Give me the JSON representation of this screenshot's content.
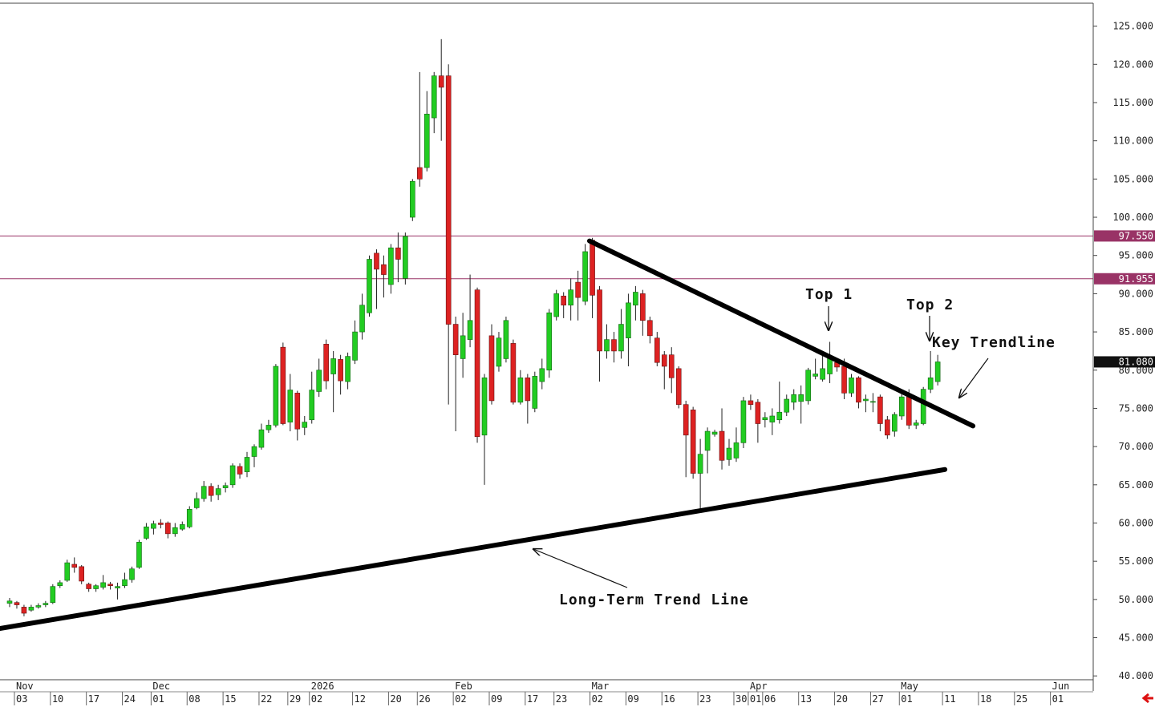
{
  "chart_data": {
    "type": "candlestick",
    "up_color": "#22cc22",
    "down_color": "#dd2222",
    "categories": [
      null,
      "03",
      null,
      null,
      null,
      null,
      "10",
      null,
      null,
      null,
      null,
      "17",
      null,
      null,
      null,
      null,
      "24",
      null,
      null,
      null,
      "01",
      null,
      null,
      null,
      null,
      "08",
      null,
      null,
      null,
      null,
      "15",
      null,
      null,
      null,
      null,
      "22",
      null,
      null,
      null,
      "29",
      null,
      null,
      "02",
      null,
      null,
      null,
      null,
      null,
      "12",
      null,
      null,
      null,
      null,
      "20",
      null,
      null,
      null,
      "26",
      null,
      null,
      null,
      null,
      "02",
      null,
      null,
      null,
      null,
      "09",
      null,
      null,
      null,
      null,
      "17",
      null,
      null,
      null,
      "23",
      null,
      null,
      null,
      null,
      "02",
      null,
      null,
      null,
      null,
      "09",
      null,
      null,
      null,
      null,
      "16",
      null,
      null,
      null,
      null,
      "23",
      null,
      null,
      null,
      null,
      "30",
      null,
      "01",
      null,
      "06",
      null,
      null,
      null,
      null,
      "13",
      null,
      null,
      null,
      null,
      "20",
      null,
      null,
      null,
      null,
      "27",
      null,
      null,
      null,
      "01",
      null,
      null,
      null,
      null,
      null,
      "11",
      null,
      null,
      null,
      null,
      "18",
      null,
      null,
      null,
      null,
      "25",
      null,
      null,
      null,
      null,
      "01",
      null,
      null,
      null,
      null
    ],
    "months": [
      {
        "index": 1,
        "label": "Nov"
      },
      {
        "index": 20,
        "label": "Dec"
      },
      {
        "index": 42,
        "label": "2026"
      },
      {
        "index": 62,
        "label": "Feb"
      },
      {
        "index": 81,
        "label": "Mar"
      },
      {
        "index": 103,
        "label": "Apr"
      },
      {
        "index": 124,
        "label": "May"
      },
      {
        "index": 145,
        "label": "Jun"
      }
    ],
    "open": [
      49.5,
      49.6,
      49.0,
      48.6,
      49.0,
      49.3,
      49.6,
      51.8,
      52.5,
      54.6,
      54.3,
      52.0,
      51.4,
      51.6,
      52.0,
      51.5,
      51.8,
      52.6,
      54.2,
      58.0,
      59.3,
      60.0,
      60.0,
      58.6,
      59.2,
      59.5,
      62.0,
      63.2,
      64.8,
      63.7,
      64.6,
      65.0,
      67.4,
      66.7,
      68.7,
      69.9,
      72.2,
      72.8,
      83.0,
      73.2,
      77.0,
      72.5,
      73.5,
      77.2,
      83.4,
      79.5,
      81.4,
      78.5,
      81.3,
      85.0,
      87.5,
      95.3,
      93.8,
      91.2,
      96.0,
      92.0,
      100.0,
      106.5,
      106.5,
      113.0,
      118.5,
      118.5,
      86.0,
      81.5,
      84.0,
      90.5,
      71.5,
      84.5,
      80.5,
      81.5,
      83.5,
      75.8,
      79.0,
      75.0,
      78.5,
      80.0,
      87.0,
      89.7,
      88.5,
      91.5,
      89.0,
      97.0,
      90.5,
      82.5,
      84.0,
      82.5,
      84.2,
      88.5,
      90.0,
      86.5,
      84.2,
      82.0,
      82.0,
      80.2,
      75.5,
      74.8,
      66.5,
      69.5,
      71.6,
      72.0,
      68.3,
      68.5,
      70.5,
      76.0,
      75.8,
      73.5,
      73.2,
      73.5,
      74.5,
      75.8,
      75.9,
      76.0,
      79.2,
      78.8,
      79.5,
      81.0,
      80.5,
      77.0,
      79.0,
      76.0,
      75.8,
      76.5,
      73.5,
      72.0,
      74.0,
      76.5,
      72.8,
      73.0,
      77.5,
      78.5,
      null,
      null,
      null,
      null,
      null,
      null,
      null,
      null,
      null,
      null,
      null,
      null,
      null,
      null,
      null,
      null,
      null,
      null,
      null,
      null
    ],
    "high": [
      50.2,
      49.8,
      49.3,
      49.3,
      49.5,
      49.8,
      52.0,
      52.5,
      55.2,
      55.5,
      54.5,
      52.2,
      52.0,
      53.2,
      52.3,
      52.2,
      53.5,
      54.3,
      57.8,
      60.0,
      60.3,
      60.5,
      60.2,
      60.0,
      60.2,
      62.2,
      64.0,
      65.5,
      65.2,
      65.0,
      65.3,
      67.8,
      67.8,
      69.3,
      70.3,
      73.0,
      73.5,
      80.8,
      83.6,
      79.5,
      77.3,
      74.0,
      79.8,
      81.5,
      84.0,
      82.5,
      82.0,
      82.3,
      86.5,
      90.0,
      95.0,
      95.8,
      95.0,
      96.5,
      98.0,
      98.0,
      105.0,
      119.0,
      116.5,
      119.0,
      123.3,
      120.0,
      87.0,
      87.5,
      92.5,
      90.8,
      79.5,
      86.0,
      85.0,
      87.0,
      84.0,
      80.0,
      79.5,
      79.8,
      81.5,
      88.0,
      90.5,
      90.2,
      92.0,
      93.0,
      96.5,
      97.3,
      91.0,
      86.0,
      85.0,
      88.0,
      90.0,
      91.0,
      90.5,
      87.0,
      85.0,
      82.5,
      83.0,
      80.5,
      76.0,
      75.2,
      71.0,
      72.5,
      72.2,
      75.0,
      71.0,
      72.5,
      76.5,
      76.8,
      76.2,
      74.5,
      75.0,
      78.5,
      76.8,
      77.5,
      78.0,
      80.3,
      81.5,
      82.5,
      83.7,
      81.2,
      81.5,
      79.5,
      79.2,
      76.8,
      77.0,
      76.8,
      74.0,
      74.5,
      77.0,
      77.5,
      73.5,
      77.8,
      82.5,
      82.0,
      null,
      null,
      null,
      null,
      null,
      null,
      null,
      null,
      null,
      null,
      null,
      null,
      null,
      null,
      null,
      null,
      null,
      null,
      null,
      null
    ],
    "low": [
      49.0,
      48.8,
      47.8,
      48.4,
      48.8,
      49.0,
      49.4,
      51.5,
      52.3,
      53.5,
      52.0,
      51.0,
      51.0,
      51.3,
      51.3,
      50.0,
      51.5,
      52.2,
      54.0,
      57.8,
      58.5,
      59.3,
      58.0,
      58.2,
      59.0,
      59.3,
      61.8,
      62.8,
      62.8,
      63.0,
      64.0,
      64.6,
      65.8,
      66.0,
      67.3,
      69.6,
      71.8,
      72.5,
      72.8,
      72.0,
      70.8,
      71.5,
      73.0,
      76.5,
      77.5,
      74.5,
      76.8,
      77.5,
      80.8,
      84.0,
      87.0,
      88.0,
      89.5,
      90.0,
      91.5,
      91.2,
      99.5,
      104.0,
      106.0,
      111.0,
      110.0,
      75.5,
      72.0,
      79.0,
      83.0,
      70.5,
      65.0,
      75.5,
      79.8,
      81.0,
      75.5,
      75.5,
      73.0,
      74.5,
      77.5,
      79.0,
      86.5,
      86.8,
      86.5,
      86.5,
      88.5,
      86.8,
      78.5,
      81.5,
      81.0,
      81.5,
      80.5,
      86.5,
      84.5,
      83.5,
      80.5,
      77.5,
      77.0,
      75.0,
      66.0,
      65.8,
      61.8,
      66.5,
      71.3,
      67.0,
      67.5,
      68.0,
      69.8,
      74.8,
      70.5,
      72.5,
      71.5,
      73.0,
      74.0,
      74.8,
      73.0,
      75.5,
      78.8,
      78.5,
      78.3,
      79.8,
      76.2,
      76.5,
      75.0,
      74.5,
      74.5,
      72.0,
      71.0,
      71.3,
      73.5,
      72.3,
      72.3,
      72.8,
      77.0,
      78.0,
      null,
      null,
      null,
      null,
      null,
      null,
      null,
      null,
      null,
      null,
      null,
      null,
      null,
      null,
      null,
      null,
      null,
      null,
      null,
      null
    ],
    "close": [
      49.8,
      49.3,
      48.2,
      49.0,
      49.2,
      49.5,
      51.7,
      52.2,
      54.8,
      54.2,
      52.4,
      51.4,
      51.8,
      52.2,
      51.8,
      51.7,
      52.6,
      54.0,
      57.5,
      59.5,
      59.9,
      59.8,
      58.6,
      59.4,
      59.8,
      61.8,
      63.2,
      64.8,
      63.6,
      64.5,
      64.9,
      67.5,
      66.4,
      68.6,
      70.0,
      72.2,
      72.8,
      80.5,
      73.0,
      77.4,
      72.3,
      73.2,
      77.4,
      80.0,
      78.6,
      81.5,
      78.6,
      81.8,
      85.0,
      88.5,
      94.5,
      93.2,
      92.5,
      96.0,
      94.5,
      97.5,
      104.7,
      105.0,
      113.5,
      118.5,
      117.0,
      86.0,
      82.0,
      84.5,
      86.5,
      71.3,
      79.0,
      76.0,
      84.2,
      86.5,
      75.8,
      79.0,
      76.0,
      79.2,
      80.2,
      87.5,
      90.0,
      88.5,
      90.5,
      89.5,
      95.5,
      89.8,
      82.5,
      84.0,
      82.5,
      86.0,
      88.8,
      90.2,
      86.5,
      84.5,
      81.0,
      80.5,
      79.0,
      75.5,
      71.5,
      66.5,
      69.0,
      72.0,
      71.9,
      68.2,
      69.8,
      70.5,
      76.0,
      75.5,
      73.0,
      73.8,
      74.0,
      74.5,
      76.2,
      76.8,
      76.8,
      80.0,
      79.5,
      80.2,
      81.8,
      80.4,
      77.0,
      79.0,
      75.8,
      76.2,
      75.9,
      73.0,
      71.5,
      74.2,
      76.5,
      72.8,
      73.1,
      77.5,
      79.0,
      81.08,
      null,
      null,
      null,
      null,
      null,
      null,
      null,
      null,
      null,
      null,
      null,
      null,
      null,
      null,
      null,
      null,
      null,
      null,
      null,
      null
    ],
    "ylim": [
      39.5,
      128.0
    ],
    "yticks": [
      {
        "value": 40,
        "label": "40.000"
      },
      {
        "value": 45,
        "label": "45.000"
      },
      {
        "value": 50,
        "label": "50.000"
      },
      {
        "value": 55,
        "label": "55.000"
      },
      {
        "value": 60,
        "label": "60.000"
      },
      {
        "value": 65,
        "label": "65.000"
      },
      {
        "value": 70,
        "label": "70.000"
      },
      {
        "value": 75,
        "label": "75.000"
      },
      {
        "value": 80,
        "label": "80.000"
      },
      {
        "value": 85,
        "label": "85.000"
      },
      {
        "value": 90,
        "label": "90.000"
      },
      {
        "value": 95,
        "label": "95.000"
      },
      {
        "value": 100,
        "label": "100.000"
      },
      {
        "value": 105,
        "label": "105.000"
      },
      {
        "value": 110,
        "label": "110.000"
      },
      {
        "value": 115,
        "label": "115.000"
      },
      {
        "value": 120,
        "label": "120.000"
      },
      {
        "value": 125,
        "label": "125.000"
      }
    ],
    "levels": [
      {
        "value": 97.55,
        "label": "97.550",
        "color": "#993366"
      },
      {
        "value": 91.955,
        "label": "91.955",
        "color": "#993366"
      }
    ],
    "last_price": {
      "value": 81.08,
      "label": "81.080"
    },
    "trendlines": [
      {
        "start": [
          -1.34,
          46.2
        ],
        "end": [
          130.0,
          67.0
        ]
      },
      {
        "start": [
          80.6,
          96.9
        ],
        "end": [
          133.9,
          72.7
        ]
      }
    ],
    "annotations": [
      {
        "text": "Top 1"
      },
      {
        "text": "Top 2"
      },
      {
        "text": "Key Trendline"
      },
      {
        "text": "Long-Term Trend Line"
      }
    ]
  }
}
